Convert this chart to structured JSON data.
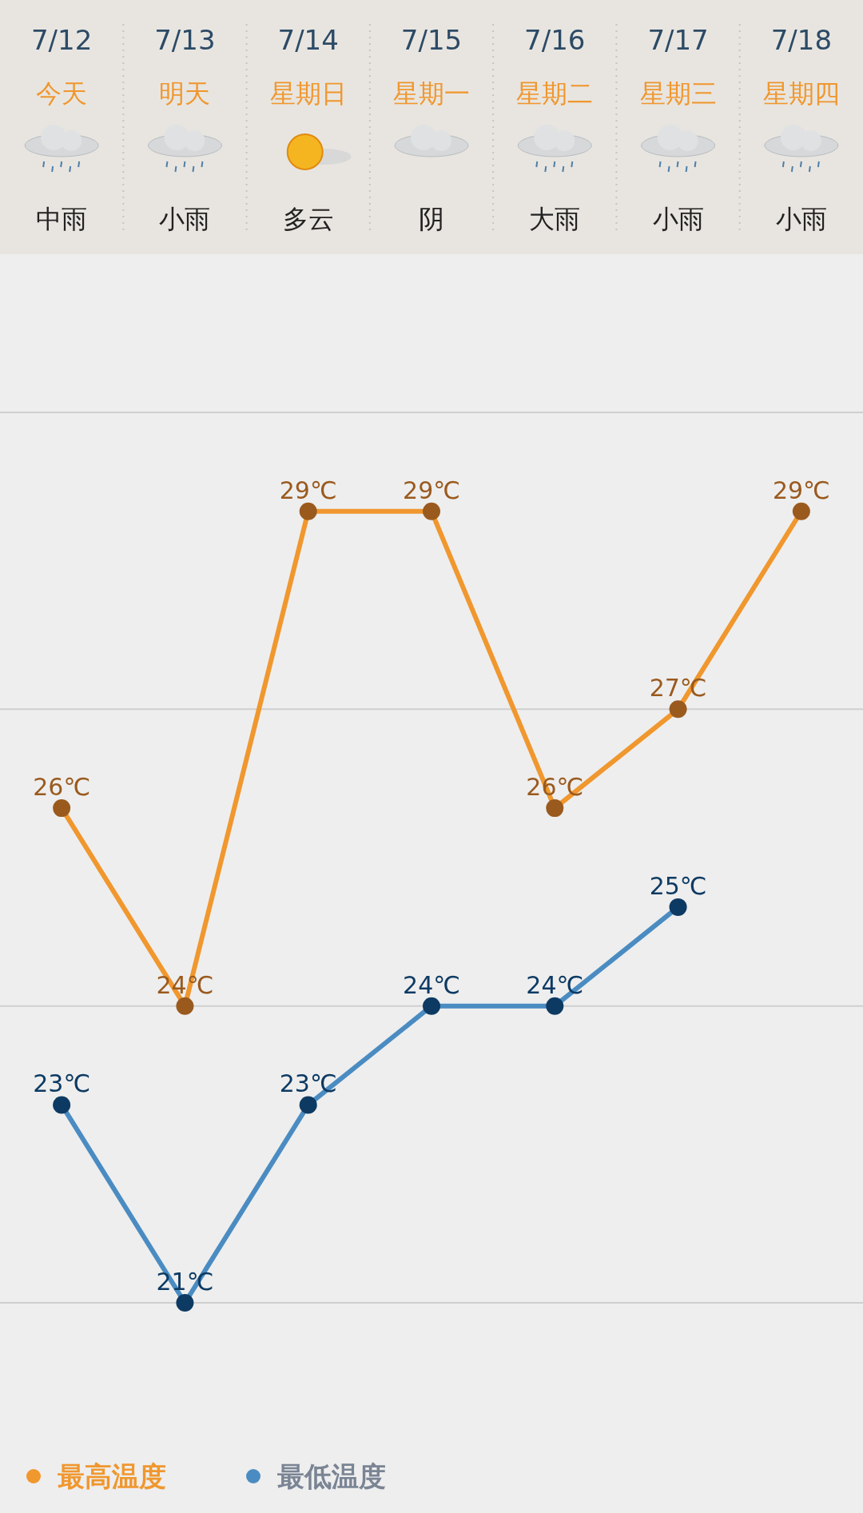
{
  "chart_data": {
    "type": "line",
    "categories": [
      "7/12",
      "7/13",
      "7/14",
      "7/15",
      "7/16",
      "7/17",
      "7/18"
    ],
    "annotations": [
      "今天",
      "明天",
      "星期日",
      "星期一",
      "星期二",
      "星期三",
      "星期四",
      "中雨",
      "小雨",
      "多云",
      "阴",
      "大雨",
      "小雨",
      "小雨"
    ],
    "series": [
      {
        "name": "最高温度",
        "color": "#f0972e",
        "values": [
          26,
          24,
          29,
          29,
          26,
          27,
          29
        ],
        "value_labels": [
          "26℃",
          "24℃",
          "29℃",
          "29℃",
          "26℃",
          "27℃",
          "29℃"
        ]
      },
      {
        "name": "最低温度",
        "color": "#4a8cc2",
        "values": [
          23,
          21,
          23,
          24,
          24,
          25,
          null
        ],
        "value_labels": [
          "23℃",
          "21℃",
          "23℃",
          "24℃",
          "24℃",
          "25℃",
          null
        ]
      }
    ],
    "ylim": [
      21,
      30
    ],
    "yticks": [
      {
        "value": 21,
        "label": null
      },
      {
        "value": 24,
        "label": null
      },
      {
        "value": 27,
        "label": null
      },
      {
        "value": 30,
        "label": null
      }
    ],
    "grid": "y",
    "legend": "bottom left",
    "marker": "circle",
    "line_style": "solid"
  }
}
